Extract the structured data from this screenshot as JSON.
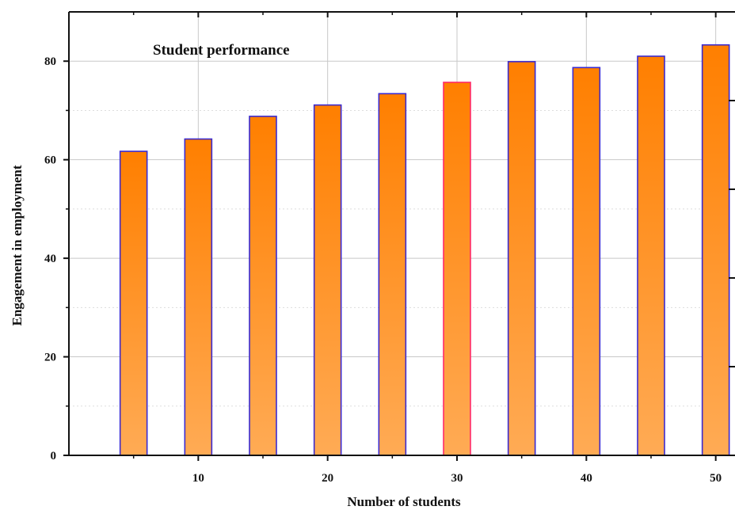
{
  "chart_data": {
    "type": "bar",
    "title": "Student performance",
    "xlabel": "Number of students",
    "ylabel": "Engagement in employment",
    "x": [
      5,
      10,
      15,
      20,
      25,
      30,
      35,
      40,
      45,
      50
    ],
    "values": [
      61.7,
      64.2,
      68.8,
      71.1,
      73.4,
      75.7,
      79.9,
      78.7,
      81.0,
      83.3
    ],
    "highlight_index": 5,
    "xticks": [
      10,
      20,
      30,
      40,
      50
    ],
    "yticks": [
      0,
      20,
      40,
      60,
      80
    ],
    "xlim": [
      0,
      51
    ],
    "ylim": [
      0,
      90
    ],
    "grid": true,
    "legend_position": "top-left",
    "colors": {
      "bar_top": "#ff7f00",
      "bar_bottom": "#ffab55",
      "bar_edge": "#3a2ad0",
      "highlight_edge": "#ff2a6a",
      "grid": "#c8c8c8",
      "axis": "#111111"
    }
  }
}
